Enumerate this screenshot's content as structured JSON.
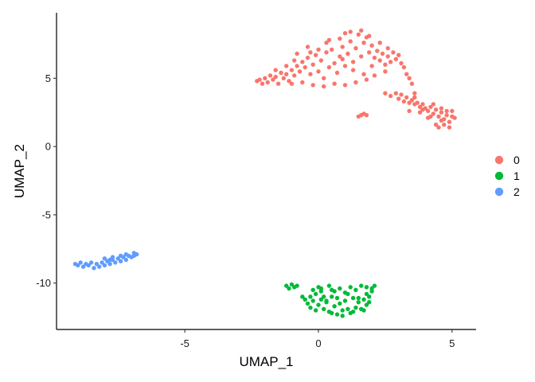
{
  "chart_data": {
    "type": "scatter",
    "title": "",
    "xlabel": "UMAP_1",
    "ylabel": "UMAP_2",
    "xlim": [
      -9.8,
      5.9
    ],
    "ylim": [
      -13.4,
      9.8
    ],
    "x_ticks": [
      -5,
      0,
      5
    ],
    "x_tick_labels": [
      "-5",
      "0",
      "5"
    ],
    "y_ticks": [
      -10,
      -5,
      0,
      5
    ],
    "y_tick_labels": [
      "-10",
      "-5",
      "0",
      "5"
    ],
    "grid": false,
    "legend_position": "right",
    "series": [
      {
        "name": "0",
        "color": "#F8766D",
        "points": [
          [
            -2.3,
            4.8
          ],
          [
            -2.2,
            4.9
          ],
          [
            -2.1,
            4.6
          ],
          [
            -2.0,
            5.0
          ],
          [
            -1.9,
            4.7
          ],
          [
            -1.8,
            5.2
          ],
          [
            -1.7,
            4.9
          ],
          [
            -1.6,
            5.1
          ],
          [
            -1.5,
            4.6
          ],
          [
            -1.4,
            5.4
          ],
          [
            -1.3,
            5.0
          ],
          [
            -1.2,
            5.3
          ],
          [
            -1.1,
            4.8
          ],
          [
            -1.0,
            5.6
          ],
          [
            -0.9,
            5.2
          ],
          [
            -0.8,
            5.9
          ],
          [
            -0.7,
            5.5
          ],
          [
            -0.6,
            6.2
          ],
          [
            -0.5,
            5.8
          ],
          [
            -0.4,
            6.5
          ],
          [
            -0.3,
            5.3
          ],
          [
            -0.2,
            6.0
          ],
          [
            -0.1,
            6.7
          ],
          [
            0.0,
            5.5
          ],
          [
            0.1,
            6.3
          ],
          [
            0.2,
            5.0
          ],
          [
            0.3,
            6.9
          ],
          [
            0.4,
            5.8
          ],
          [
            0.5,
            7.1
          ],
          [
            0.6,
            6.1
          ],
          [
            0.7,
            5.4
          ],
          [
            0.8,
            6.6
          ],
          [
            0.9,
            7.3
          ],
          [
            1.0,
            5.9
          ],
          [
            1.1,
            6.8
          ],
          [
            1.2,
            7.7
          ],
          [
            1.3,
            6.2
          ],
          [
            1.4,
            7.2
          ],
          [
            1.5,
            8.2
          ],
          [
            1.6,
            6.6
          ],
          [
            1.7,
            7.6
          ],
          [
            1.8,
            8.0
          ],
          [
            1.9,
            6.9
          ],
          [
            2.0,
            7.4
          ],
          [
            2.1,
            6.5
          ],
          [
            2.2,
            7.0
          ],
          [
            2.3,
            6.3
          ],
          [
            2.4,
            6.8
          ],
          [
            2.5,
            6.0
          ],
          [
            2.6,
            6.6
          ],
          [
            2.7,
            6.2
          ],
          [
            2.8,
            6.9
          ],
          [
            2.9,
            6.4
          ],
          [
            3.0,
            6.7
          ],
          [
            3.1,
            6.1
          ],
          [
            3.2,
            5.8
          ],
          [
            3.3,
            5.3
          ],
          [
            3.4,
            5.0
          ],
          [
            3.5,
            4.6
          ],
          [
            3.6,
            3.9
          ],
          [
            -1.0,
            4.6
          ],
          [
            -0.6,
            4.7
          ],
          [
            -0.2,
            4.5
          ],
          [
            0.2,
            4.4
          ],
          [
            0.6,
            4.6
          ],
          [
            1.0,
            4.5
          ],
          [
            1.4,
            4.7
          ],
          [
            1.8,
            4.9
          ],
          [
            2.1,
            5.2
          ],
          [
            2.5,
            5.5
          ],
          [
            -0.9,
            6.3
          ],
          [
            -0.3,
            6.9
          ],
          [
            0.3,
            7.6
          ],
          [
            0.8,
            7.9
          ],
          [
            1.2,
            8.4
          ],
          [
            1.6,
            8.5
          ],
          [
            1.9,
            8.1
          ],
          [
            2.3,
            7.6
          ],
          [
            2.6,
            7.2
          ],
          [
            1.0,
            8.3
          ],
          [
            -1.6,
            5.6
          ],
          [
            -1.2,
            5.9
          ],
          [
            -0.8,
            6.8
          ],
          [
            -0.4,
            7.3
          ],
          [
            0.0,
            7.1
          ],
          [
            0.4,
            7.8
          ],
          [
            0.9,
            6.4
          ],
          [
            1.3,
            5.6
          ],
          [
            1.7,
            5.3
          ],
          [
            2.0,
            5.9
          ],
          [
            1.6,
            2.3
          ],
          [
            1.7,
            2.4
          ],
          [
            1.8,
            2.3
          ],
          [
            1.5,
            2.2
          ],
          [
            2.5,
            3.9
          ],
          [
            2.7,
            3.7
          ],
          [
            2.9,
            3.9
          ],
          [
            3.0,
            3.5
          ],
          [
            3.1,
            3.8
          ],
          [
            3.2,
            3.3
          ],
          [
            3.3,
            3.6
          ],
          [
            3.4,
            3.2
          ],
          [
            3.5,
            3.4
          ],
          [
            3.6,
            3.1
          ],
          [
            3.7,
            3.2
          ],
          [
            3.8,
            2.9
          ],
          [
            3.9,
            3.1
          ],
          [
            4.0,
            2.8
          ],
          [
            4.1,
            2.6
          ],
          [
            4.2,
            2.9
          ],
          [
            4.3,
            2.4
          ],
          [
            4.4,
            2.7
          ],
          [
            4.5,
            2.2
          ],
          [
            4.6,
            2.5
          ],
          [
            4.7,
            2.0
          ],
          [
            4.8,
            2.3
          ],
          [
            4.9,
            1.8
          ],
          [
            5.0,
            2.2
          ],
          [
            4.4,
            1.6
          ],
          [
            4.6,
            1.9
          ],
          [
            4.8,
            2.6
          ],
          [
            5.0,
            2.6
          ],
          [
            5.1,
            2.1
          ],
          [
            3.4,
            2.6
          ],
          [
            3.8,
            2.5
          ],
          [
            4.2,
            2.2
          ],
          [
            4.5,
            1.4
          ],
          [
            4.7,
            1.6
          ],
          [
            4.9,
            1.4
          ],
          [
            4.6,
            2.8
          ],
          [
            4.3,
            3.1
          ],
          [
            3.6,
            3.6
          ],
          [
            3.9,
            2.7
          ],
          [
            4.1,
            2.1
          ]
        ]
      },
      {
        "name": "1",
        "color": "#00BA38",
        "points": [
          [
            -1.2,
            -10.2
          ],
          [
            -1.1,
            -10.4
          ],
          [
            -1.0,
            -10.1
          ],
          [
            -0.9,
            -10.3
          ],
          [
            -0.8,
            -10.2
          ],
          [
            -0.2,
            -10.5
          ],
          [
            -0.1,
            -10.8
          ],
          [
            0.0,
            -10.3
          ],
          [
            0.1,
            -10.6
          ],
          [
            0.2,
            -11.0
          ],
          [
            -0.5,
            -11.2
          ],
          [
            -0.4,
            -11.5
          ],
          [
            -0.3,
            -11.8
          ],
          [
            -0.2,
            -11.3
          ],
          [
            -0.1,
            -12.0
          ],
          [
            0.0,
            -11.6
          ],
          [
            0.1,
            -11.2
          ],
          [
            0.2,
            -11.9
          ],
          [
            0.3,
            -11.4
          ],
          [
            0.4,
            -12.1
          ],
          [
            0.5,
            -11.0
          ],
          [
            0.6,
            -11.7
          ],
          [
            0.7,
            -12.3
          ],
          [
            0.8,
            -11.5
          ],
          [
            0.9,
            -12.4
          ],
          [
            1.0,
            -11.3
          ],
          [
            1.1,
            -11.9
          ],
          [
            1.2,
            -12.2
          ],
          [
            1.3,
            -11.1
          ],
          [
            1.4,
            -11.8
          ],
          [
            1.5,
            -11.4
          ],
          [
            1.6,
            -11.9
          ],
          [
            1.7,
            -11.2
          ],
          [
            1.8,
            -11.6
          ],
          [
            1.9,
            -11.0
          ],
          [
            2.0,
            -10.4
          ],
          [
            2.1,
            -10.2
          ],
          [
            1.6,
            -10.2
          ],
          [
            1.2,
            -10.3
          ],
          [
            0.8,
            -10.4
          ],
          [
            0.4,
            -10.2
          ],
          [
            0.6,
            -10.6
          ],
          [
            1.0,
            -10.7
          ],
          [
            1.4,
            -10.5
          ],
          [
            1.8,
            -10.8
          ],
          [
            0.3,
            -11.3
          ],
          [
            0.7,
            -11.1
          ],
          [
            1.1,
            -10.8
          ],
          [
            1.5,
            -11.1
          ],
          [
            1.9,
            -11.4
          ],
          [
            0.9,
            -12.0
          ],
          [
            1.3,
            -12.1
          ],
          [
            0.5,
            -12.2
          ],
          [
            1.7,
            -12.0
          ],
          [
            1.8,
            -10.3
          ],
          [
            2.0,
            -10.6
          ],
          [
            -0.6,
            -11.0
          ],
          [
            -0.3,
            -11.0
          ],
          [
            0.1,
            -10.4
          ],
          [
            0.5,
            -10.5
          ]
        ]
      },
      {
        "name": "2",
        "color": "#619CFF",
        "points": [
          [
            -9.1,
            -8.6
          ],
          [
            -9.0,
            -8.7
          ],
          [
            -8.9,
            -8.5
          ],
          [
            -8.8,
            -8.8
          ],
          [
            -8.7,
            -8.6
          ],
          [
            -8.6,
            -8.7
          ],
          [
            -8.5,
            -8.5
          ],
          [
            -8.4,
            -8.9
          ],
          [
            -8.3,
            -8.6
          ],
          [
            -8.2,
            -8.8
          ],
          [
            -8.1,
            -8.5
          ],
          [
            -8.0,
            -8.7
          ],
          [
            -7.9,
            -8.4
          ],
          [
            -7.8,
            -8.6
          ],
          [
            -7.7,
            -8.3
          ],
          [
            -7.6,
            -8.5
          ],
          [
            -7.5,
            -8.2
          ],
          [
            -7.4,
            -8.4
          ],
          [
            -7.3,
            -8.1
          ],
          [
            -7.2,
            -8.3
          ],
          [
            -7.1,
            -8.0
          ],
          [
            -7.0,
            -8.1
          ],
          [
            -6.9,
            -7.8
          ],
          [
            -6.8,
            -7.9
          ],
          [
            -7.4,
            -8.0
          ],
          [
            -7.7,
            -8.1
          ],
          [
            -8.0,
            -8.2
          ],
          [
            -7.2,
            -7.9
          ],
          [
            -6.9,
            -8.0
          ],
          [
            -7.8,
            -8.3
          ]
        ]
      }
    ]
  }
}
